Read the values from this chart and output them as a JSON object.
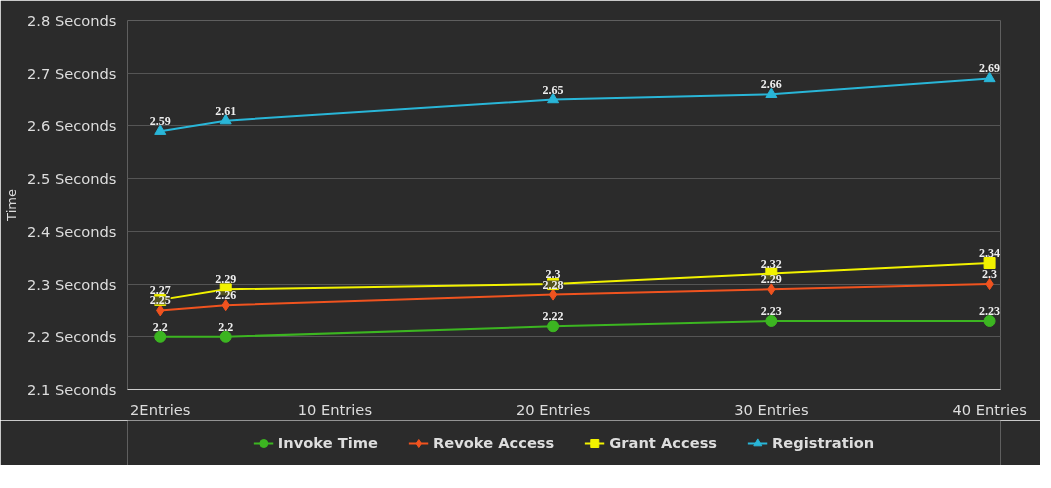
{
  "chart_data": {
    "type": "line",
    "ylabel": "Time",
    "x": [
      2,
      5,
      20,
      30,
      40
    ],
    "xlim": [
      0.5,
      40.5
    ],
    "xticks": [
      {
        "value": 2,
        "label": "2Entries"
      },
      {
        "value": 10,
        "label": "10 Entries"
      },
      {
        "value": 20,
        "label": "20 Entries"
      },
      {
        "value": 30,
        "label": "30 Entries"
      },
      {
        "value": 40,
        "label": "40 Entries"
      }
    ],
    "ylim": [
      2.1,
      2.8
    ],
    "yticks": [
      {
        "value": 2.1,
        "label": "2.1 Seconds"
      },
      {
        "value": 2.2,
        "label": "2.2 Seconds"
      },
      {
        "value": 2.3,
        "label": "2.3 Seconds"
      },
      {
        "value": 2.4,
        "label": "2.4 Seconds"
      },
      {
        "value": 2.5,
        "label": "2.5 Seconds"
      },
      {
        "value": 2.6,
        "label": "2.6 Seconds"
      },
      {
        "value": 2.7,
        "label": "2.7 Seconds"
      },
      {
        "value": 2.8,
        "label": "2.8 Seconds"
      }
    ],
    "series": [
      {
        "name": "Invoke Time",
        "color": "#3cb521",
        "marker": "circle",
        "values": [
          2.2,
          2.2,
          2.22,
          2.23,
          2.23
        ]
      },
      {
        "name": "Revoke Access",
        "color": "#f0531f",
        "marker": "diamond",
        "values": [
          2.25,
          2.26,
          2.28,
          2.29,
          2.3
        ]
      },
      {
        "name": "Grant Access",
        "color": "#f2f200",
        "marker": "square",
        "values": [
          2.27,
          2.29,
          2.3,
          2.32,
          2.34
        ]
      },
      {
        "name": "Registration",
        "color": "#29b6d8",
        "marker": "triangle",
        "values": [
          2.59,
          2.61,
          2.65,
          2.66,
          2.69
        ]
      }
    ],
    "data_labels": true,
    "grid": "y",
    "legend": "bottom",
    "line_style": "solid"
  }
}
